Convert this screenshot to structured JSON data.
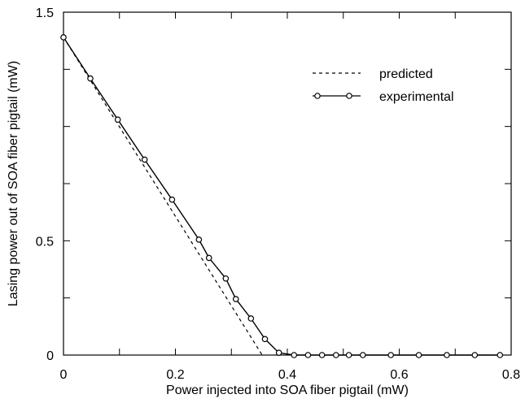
{
  "chart_data": {
    "type": "line",
    "title": "",
    "xlabel": "Power injected into SOA fiber pigtail (mW)",
    "ylabel": "Lasing power out of SOA fiber pigtail (mW)",
    "xlim": [
      0,
      0.8
    ],
    "ylim": [
      0,
      1.5
    ],
    "x_ticks": [
      "0",
      "0.2",
      "0.4",
      "0.6",
      "0.8"
    ],
    "y_ticks": [
      "0",
      "0.5",
      "1.5"
    ],
    "grid": false,
    "legend_position": "top-right",
    "series": [
      {
        "name": "predicted",
        "style": "dashed",
        "markers": false,
        "x": [
          0,
          0.355
        ],
        "y": [
          1.39,
          0
        ]
      },
      {
        "name": "experimental",
        "style": "solid",
        "markers": true,
        "x": [
          0,
          0.048,
          0.097,
          0.145,
          0.194,
          0.242,
          0.26,
          0.29,
          0.308,
          0.335,
          0.36,
          0.385,
          0.412,
          0.437,
          0.462,
          0.487,
          0.51,
          0.535,
          0.585,
          0.635,
          0.685,
          0.735,
          0.78
        ],
        "y": [
          1.39,
          1.21,
          1.03,
          0.855,
          0.68,
          0.505,
          0.425,
          0.335,
          0.245,
          0.16,
          0.07,
          0.01,
          0.0,
          0.0,
          0.0,
          0.0,
          0.0,
          0.0,
          0.0,
          0.0,
          0.0,
          0.0,
          0.0
        ]
      }
    ]
  }
}
